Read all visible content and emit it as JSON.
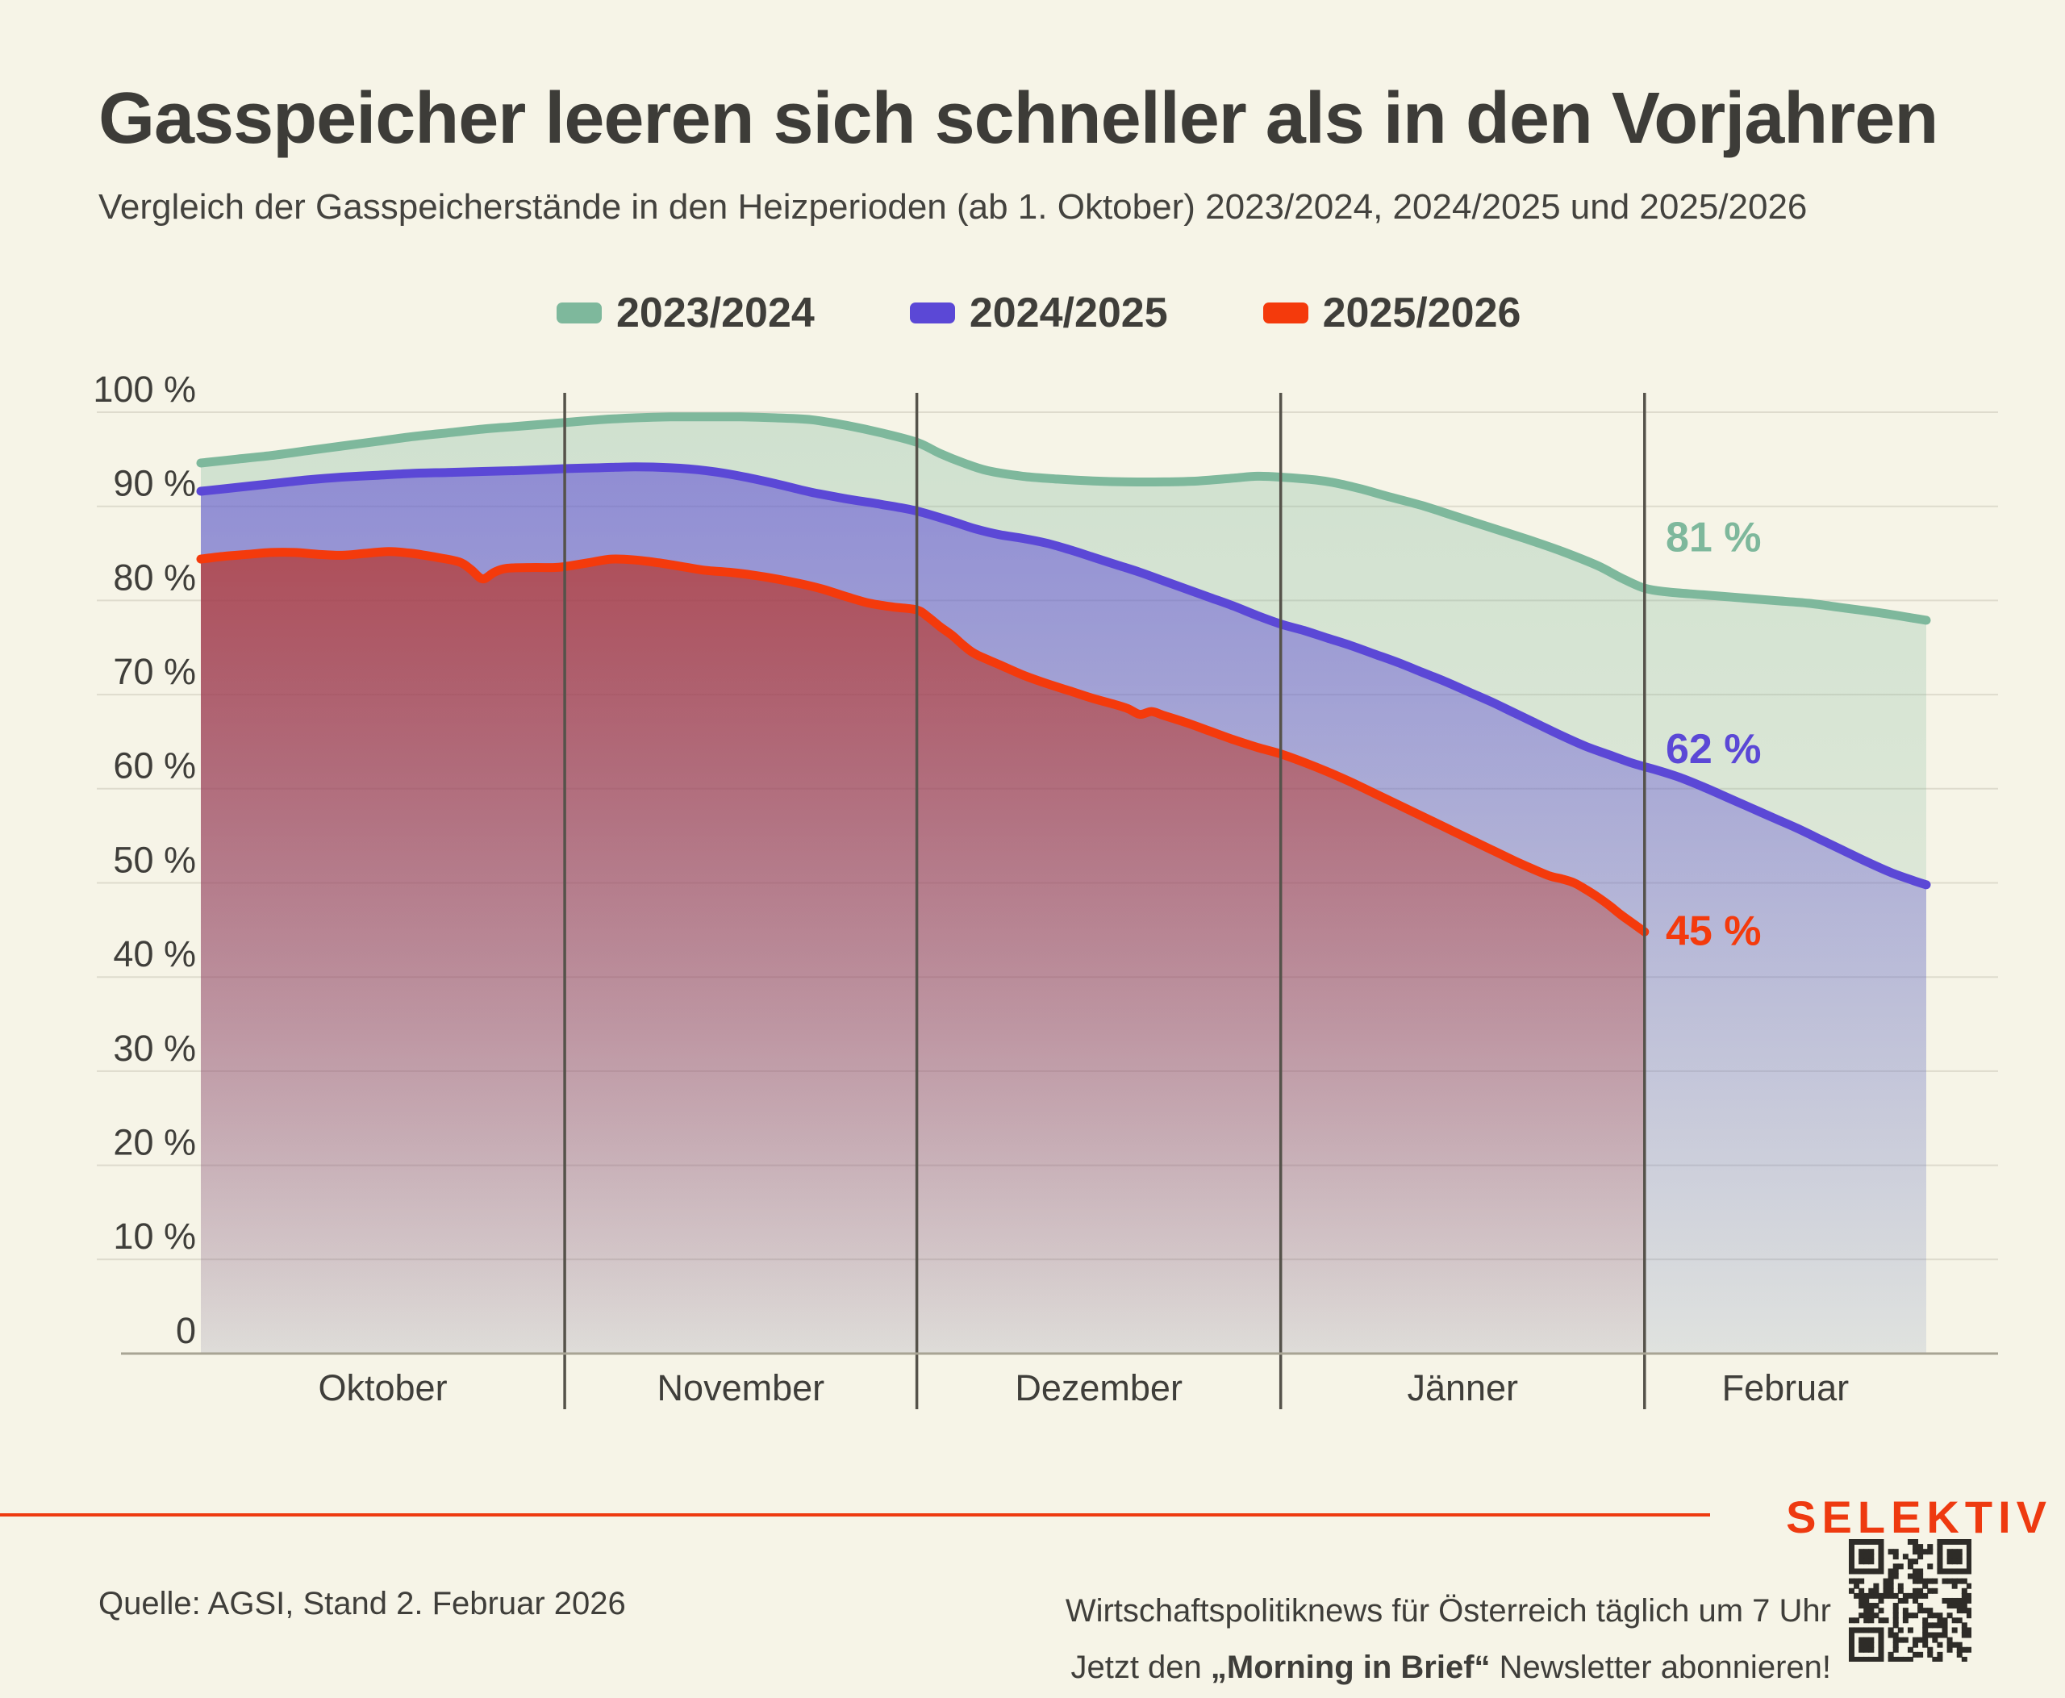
{
  "page": {
    "background": "#f6f4e7",
    "text_color": "#3d3c38"
  },
  "header": {
    "title": "Gasspeicher leeren sich schneller als in den Vorjahren",
    "subtitle": "Vergleich der Gasspeicherstände in den Heizperioden (ab 1. Oktober) 2023/2024, 2024/2025 und 2025/2026"
  },
  "footer": {
    "source": "Quelle: AGSI, Stand 2. Februar 2026",
    "newsletter_line1": "Wirtschaftspolitiknews für Österreich täglich um 7 Uhr",
    "newsletter_line2_prefix": "Jetzt den ",
    "newsletter_line2_bold": "„Morning in Brief“",
    "newsletter_line2_suffix": " Newsletter abonnieren!",
    "brand": "SELEKTIV",
    "accent_color": "#ee3a10"
  },
  "chart_data": {
    "type": "area",
    "x_unit": "Tage ab 1. Oktober",
    "x_months": [
      {
        "label": "Oktober",
        "start_day": 0
      },
      {
        "label": "November",
        "start_day": 31
      },
      {
        "label": "Dezember",
        "start_day": 61
      },
      {
        "label": "Jänner",
        "start_day": 92
      },
      {
        "label": "Februar",
        "start_day": 123
      }
    ],
    "x_max_day": 147,
    "ylim": [
      0,
      100
    ],
    "grid": true,
    "legend_position": "top",
    "y_ticks": [
      {
        "value": 0,
        "label": "0"
      },
      {
        "value": 10,
        "label": "10 %"
      },
      {
        "value": 20,
        "label": "20 %"
      },
      {
        "value": 30,
        "label": "30 %"
      },
      {
        "value": 40,
        "label": "40 %"
      },
      {
        "value": 50,
        "label": "50 %"
      },
      {
        "value": 60,
        "label": "60 %"
      },
      {
        "value": 70,
        "label": "70 %"
      },
      {
        "value": 80,
        "label": "80 %"
      },
      {
        "value": 90,
        "label": "90 %"
      },
      {
        "value": 100,
        "label": "100 %"
      }
    ],
    "series": [
      {
        "name": "2023/2024",
        "color": "#7eb89c",
        "fill_from": "rgba(126,184,156,0.32)",
        "fill_to": "rgba(126,184,156,0.10)",
        "end_value_pct": 81,
        "points": [
          [
            0,
            94.6
          ],
          [
            3,
            95.0
          ],
          [
            6,
            95.4
          ],
          [
            9,
            95.9
          ],
          [
            12,
            96.4
          ],
          [
            15,
            96.9
          ],
          [
            18,
            97.4
          ],
          [
            21,
            97.8
          ],
          [
            24,
            98.2
          ],
          [
            27,
            98.5
          ],
          [
            31,
            98.9
          ],
          [
            34,
            99.2
          ],
          [
            37,
            99.4
          ],
          [
            40,
            99.5
          ],
          [
            43,
            99.5
          ],
          [
            46,
            99.5
          ],
          [
            49,
            99.4
          ],
          [
            52,
            99.2
          ],
          [
            55,
            98.6
          ],
          [
            58,
            97.8
          ],
          [
            61,
            96.8
          ],
          [
            63,
            95.6
          ],
          [
            65,
            94.6
          ],
          [
            67,
            93.8
          ],
          [
            70,
            93.2
          ],
          [
            73,
            92.9
          ],
          [
            76,
            92.7
          ],
          [
            79,
            92.6
          ],
          [
            82,
            92.6
          ],
          [
            85,
            92.7
          ],
          [
            88,
            93.0
          ],
          [
            90,
            93.2
          ],
          [
            92,
            93.1
          ],
          [
            95,
            92.8
          ],
          [
            97,
            92.4
          ],
          [
            99,
            91.8
          ],
          [
            101,
            91.1
          ],
          [
            104,
            90.1
          ],
          [
            107,
            88.9
          ],
          [
            110,
            87.7
          ],
          [
            113,
            86.5
          ],
          [
            116,
            85.2
          ],
          [
            119,
            83.7
          ],
          [
            121,
            82.4
          ],
          [
            123,
            81.3
          ],
          [
            125,
            80.9
          ],
          [
            128,
            80.6
          ],
          [
            131,
            80.3
          ],
          [
            134,
            80.0
          ],
          [
            137,
            79.7
          ],
          [
            140,
            79.2
          ],
          [
            143,
            78.7
          ],
          [
            146,
            78.1
          ],
          [
            147,
            77.9
          ]
        ]
      },
      {
        "name": "2024/2025",
        "color": "#5b48d6",
        "fill_from": "rgba(91,72,214,0.58)",
        "fill_to": "rgba(91,72,214,0.07)",
        "end_value_pct": 62,
        "points": [
          [
            0,
            91.6
          ],
          [
            3,
            92.0
          ],
          [
            6,
            92.4
          ],
          [
            9,
            92.8
          ],
          [
            12,
            93.1
          ],
          [
            15,
            93.3
          ],
          [
            18,
            93.5
          ],
          [
            21,
            93.6
          ],
          [
            24,
            93.7
          ],
          [
            27,
            93.8
          ],
          [
            31,
            94.0
          ],
          [
            34,
            94.1
          ],
          [
            37,
            94.2
          ],
          [
            40,
            94.1
          ],
          [
            43,
            93.8
          ],
          [
            46,
            93.2
          ],
          [
            49,
            92.4
          ],
          [
            52,
            91.5
          ],
          [
            55,
            90.8
          ],
          [
            58,
            90.2
          ],
          [
            61,
            89.5
          ],
          [
            64,
            88.4
          ],
          [
            66,
            87.6
          ],
          [
            68,
            87.0
          ],
          [
            70,
            86.6
          ],
          [
            72,
            86.1
          ],
          [
            74,
            85.4
          ],
          [
            76,
            84.6
          ],
          [
            78,
            83.8
          ],
          [
            80,
            83.0
          ],
          [
            82,
            82.1
          ],
          [
            84,
            81.2
          ],
          [
            86,
            80.3
          ],
          [
            88,
            79.4
          ],
          [
            90,
            78.4
          ],
          [
            92,
            77.5
          ],
          [
            94,
            76.8
          ],
          [
            96,
            76.0
          ],
          [
            98,
            75.2
          ],
          [
            100,
            74.3
          ],
          [
            102,
            73.4
          ],
          [
            104,
            72.4
          ],
          [
            106,
            71.4
          ],
          [
            108,
            70.3
          ],
          [
            110,
            69.2
          ],
          [
            112,
            68.0
          ],
          [
            114,
            66.8
          ],
          [
            116,
            65.6
          ],
          [
            118,
            64.5
          ],
          [
            120,
            63.6
          ],
          [
            122,
            62.7
          ],
          [
            124,
            62.0
          ],
          [
            126,
            61.2
          ],
          [
            128,
            60.2
          ],
          [
            130,
            59.1
          ],
          [
            132,
            58.0
          ],
          [
            134,
            56.9
          ],
          [
            136,
            55.8
          ],
          [
            138,
            54.6
          ],
          [
            140,
            53.4
          ],
          [
            142,
            52.2
          ],
          [
            144,
            51.1
          ],
          [
            146,
            50.2
          ],
          [
            147,
            49.8
          ]
        ]
      },
      {
        "name": "2025/2026",
        "color": "#f43a0c",
        "fill_from": "rgba(185,45,30,0.78)",
        "fill_to": "rgba(185,45,30,0.03)",
        "end_value_pct": 45,
        "points": [
          [
            0,
            84.4
          ],
          [
            2,
            84.7
          ],
          [
            4,
            84.9
          ],
          [
            6,
            85.1
          ],
          [
            8,
            85.1
          ],
          [
            10,
            84.9
          ],
          [
            12,
            84.8
          ],
          [
            14,
            85.0
          ],
          [
            16,
            85.2
          ],
          [
            18,
            85.0
          ],
          [
            20,
            84.6
          ],
          [
            22,
            84.1
          ],
          [
            23,
            83.3
          ],
          [
            24,
            82.3
          ],
          [
            25,
            83.0
          ],
          [
            26,
            83.4
          ],
          [
            28,
            83.5
          ],
          [
            30,
            83.5
          ],
          [
            31,
            83.6
          ],
          [
            33,
            84.0
          ],
          [
            35,
            84.4
          ],
          [
            37,
            84.3
          ],
          [
            39,
            84.0
          ],
          [
            41,
            83.6
          ],
          [
            43,
            83.2
          ],
          [
            45,
            83.0
          ],
          [
            47,
            82.7
          ],
          [
            49,
            82.3
          ],
          [
            51,
            81.8
          ],
          [
            53,
            81.2
          ],
          [
            55,
            80.4
          ],
          [
            57,
            79.7
          ],
          [
            59,
            79.3
          ],
          [
            61,
            79.0
          ],
          [
            62,
            78.2
          ],
          [
            63,
            77.2
          ],
          [
            64,
            76.3
          ],
          [
            65,
            75.2
          ],
          [
            66,
            74.3
          ],
          [
            68,
            73.2
          ],
          [
            70,
            72.1
          ],
          [
            72,
            71.2
          ],
          [
            74,
            70.4
          ],
          [
            76,
            69.6
          ],
          [
            78,
            68.9
          ],
          [
            79,
            68.5
          ],
          [
            80,
            67.9
          ],
          [
            81,
            68.2
          ],
          [
            82,
            67.8
          ],
          [
            84,
            67.0
          ],
          [
            86,
            66.1
          ],
          [
            88,
            65.2
          ],
          [
            90,
            64.4
          ],
          [
            92,
            63.7
          ],
          [
            94,
            62.8
          ],
          [
            96,
            61.8
          ],
          [
            98,
            60.7
          ],
          [
            100,
            59.5
          ],
          [
            102,
            58.3
          ],
          [
            104,
            57.1
          ],
          [
            106,
            55.9
          ],
          [
            108,
            54.7
          ],
          [
            110,
            53.5
          ],
          [
            112,
            52.3
          ],
          [
            114,
            51.2
          ],
          [
            115,
            50.7
          ],
          [
            116,
            50.4
          ],
          [
            117,
            50.0
          ],
          [
            118,
            49.3
          ],
          [
            119,
            48.5
          ],
          [
            120,
            47.6
          ],
          [
            121,
            46.6
          ],
          [
            122,
            45.7
          ],
          [
            123,
            44.8
          ]
        ]
      }
    ],
    "annotations": [
      {
        "text": "81 %",
        "series_index": 0,
        "day": 124.8,
        "pct": 86.4
      },
      {
        "text": "62 %",
        "series_index": 1,
        "day": 124.8,
        "pct": 63.9
      },
      {
        "text": "45 %",
        "series_index": 2,
        "day": 124.8,
        "pct": 44.6
      }
    ]
  }
}
